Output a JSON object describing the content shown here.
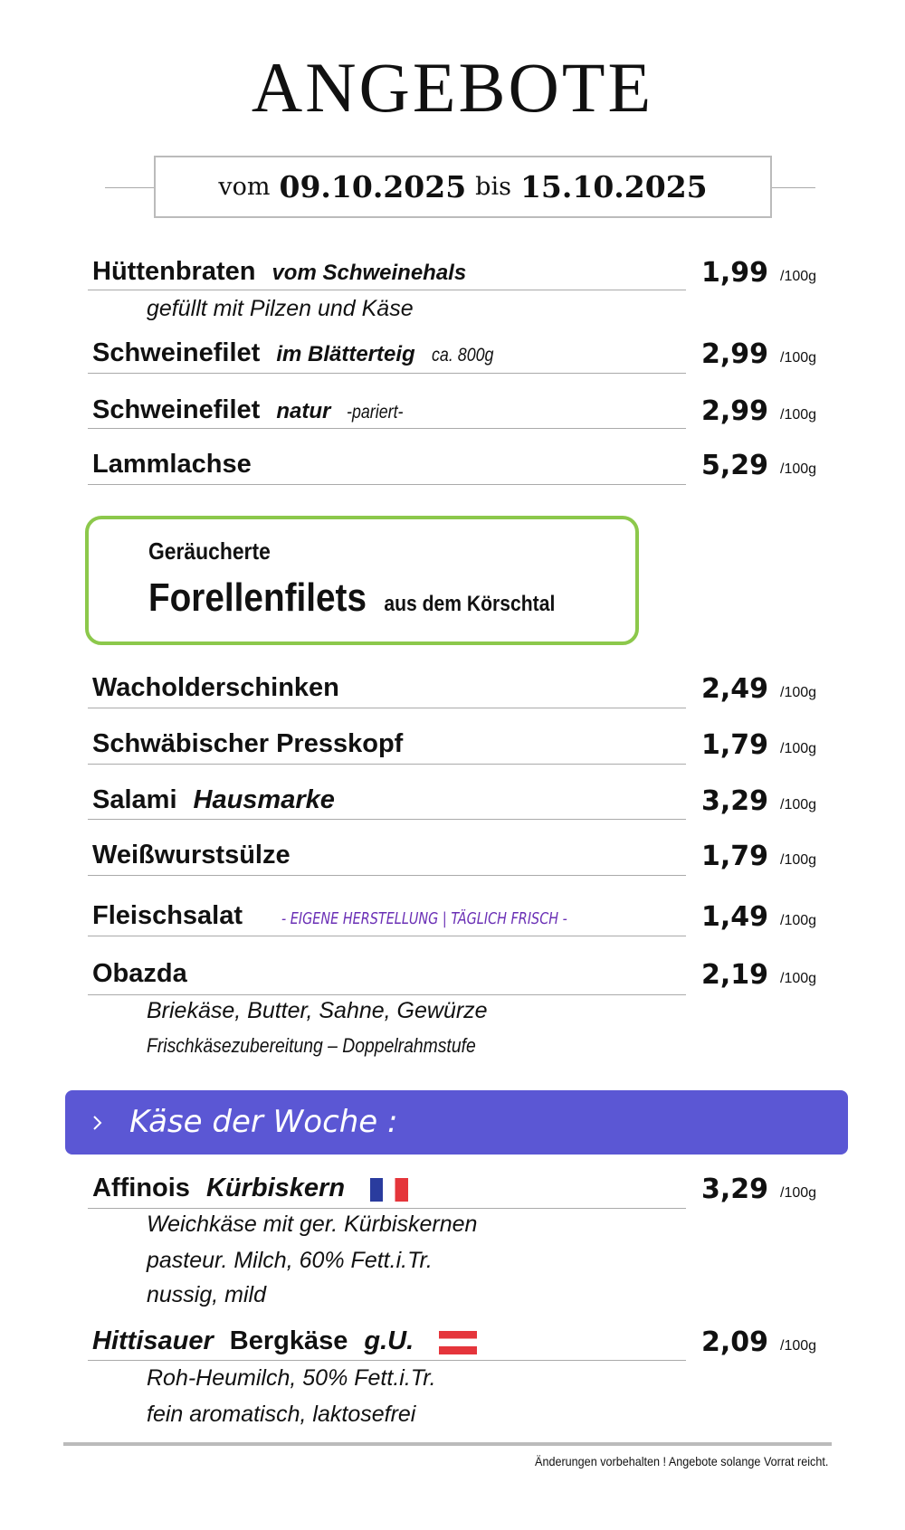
{
  "header": {
    "title": "ANGEBOTE",
    "date_prefix": "vom",
    "date_from": "09.10.2025",
    "date_sep": "bis",
    "date_to": "15.10.2025"
  },
  "offers": [
    {
      "name": "Hüttenbraten",
      "extra": "vom Schweinehals",
      "price": "1,99",
      "unit": "/100g",
      "desc": [
        "gefüllt mit Pilzen und Käse"
      ]
    },
    {
      "name": "Schweinefilet",
      "extra": "im Blätterteig",
      "note": "ca. 800g",
      "price": "2,99",
      "unit": "/100g"
    },
    {
      "name": "Schweinefilet",
      "extra": "natur",
      "note": "-pariert-",
      "price": "2,99",
      "unit": "/100g"
    },
    {
      "name": "Lammlachse",
      "price": "5,29",
      "unit": "/100g"
    },
    {
      "name": "Wacholderschinken",
      "price": "2,49",
      "unit": "/100g"
    },
    {
      "name": "Schwäbischer Presskopf",
      "price": "1,79",
      "unit": "/100g"
    },
    {
      "name": "Salami",
      "extra": "Hausmarke",
      "price": "3,29",
      "unit": "/100g"
    },
    {
      "name": "Weißwurstsülze",
      "price": "1,79",
      "unit": "/100g"
    },
    {
      "name": "Fleischsalat",
      "tagline": "- EIGENE HERSTELLUNG | TÄGLICH FRISCH -",
      "price": "1,49",
      "unit": "/100g"
    },
    {
      "name": "Obazda",
      "price": "2,19",
      "unit": "/100g",
      "desc": [
        "Briekäse, Butter, Sahne, Gewürze",
        "Frischkäsezubereitung – Doppelrahmstufe"
      ]
    }
  ],
  "highlight": {
    "line1": "Geräucherte",
    "name": "Forellenfilets",
    "origin": "aus dem Körschtal"
  },
  "cheese": {
    "title": "Käse der Woche :",
    "items": [
      {
        "name": "Affinois",
        "extra": "Kürbiskern",
        "price": "3,29",
        "unit": "/100g",
        "desc": [
          "Weichkäse mit ger. Kürbiskernen",
          "pasteur. Milch, 60% Fett.i.Tr.",
          "nussig, mild"
        ]
      },
      {
        "prefix": "Hittisauer",
        "name": "Bergkäse",
        "extra": "g.U.",
        "price": "2,09",
        "unit": "/100g",
        "desc": [
          "Roh-Heumilch, 50% Fett.i.Tr.",
          "fein aromatisch, laktosefrei"
        ]
      }
    ]
  },
  "footer": "Änderungen vorbehalten ! Angebote solange Vorrat reicht."
}
